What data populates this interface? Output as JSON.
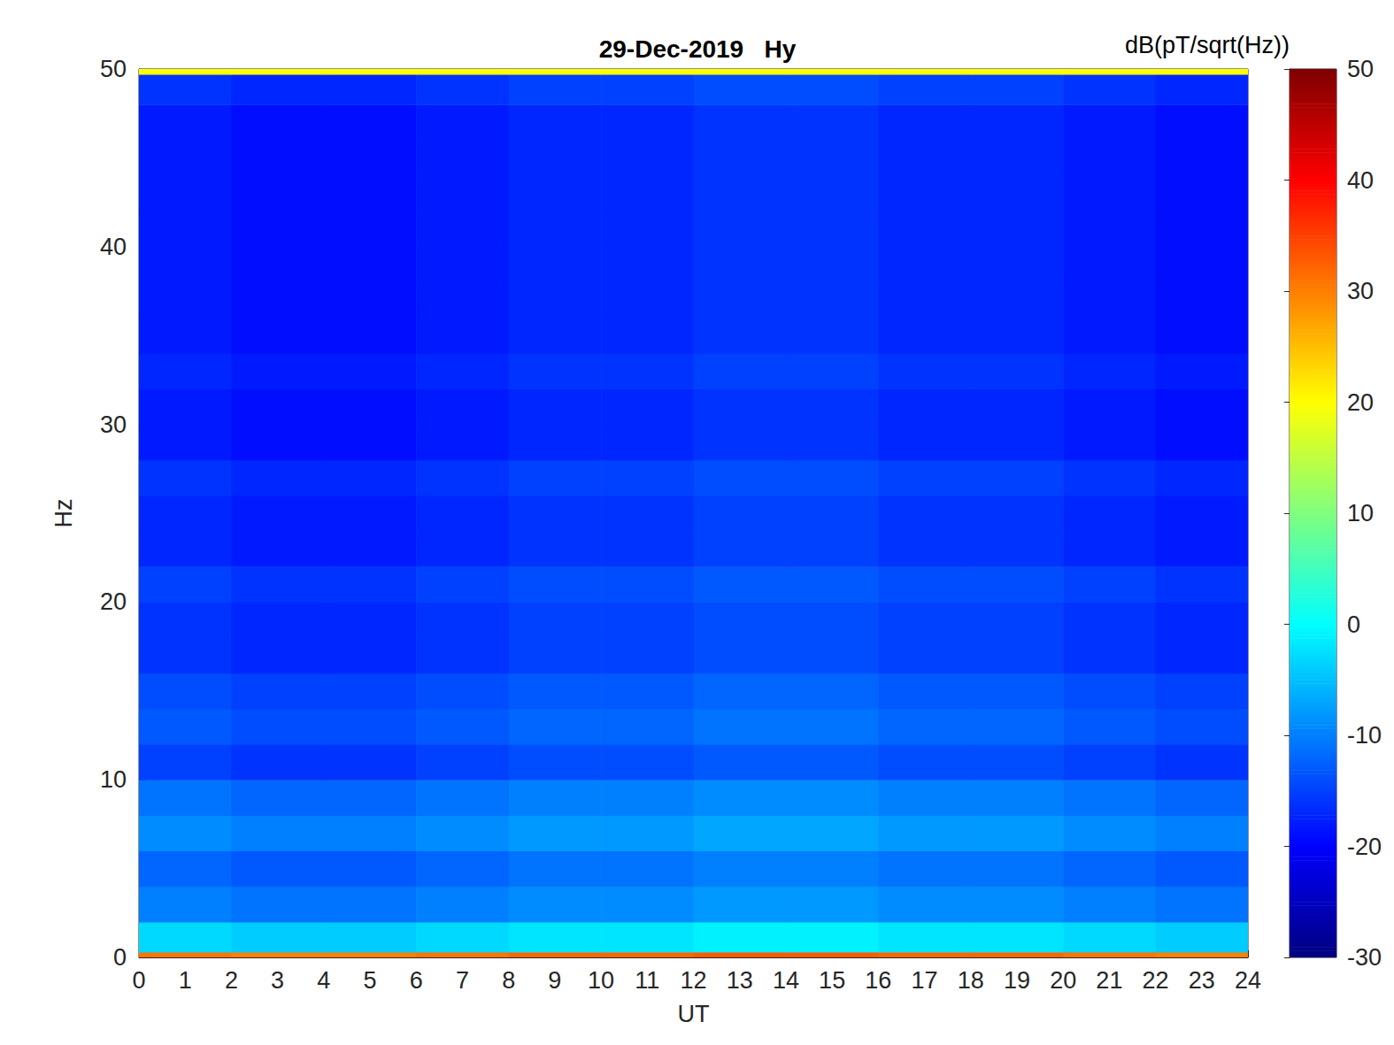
{
  "chart_data": {
    "type": "heatmap",
    "title": "29-Dec-2019   Hy",
    "x_label": "UT",
    "y_label": "Hz",
    "xlim": [
      0,
      24
    ],
    "xticks": [
      0,
      1,
      2,
      3,
      4,
      5,
      6,
      7,
      8,
      9,
      10,
      11,
      12,
      13,
      14,
      15,
      16,
      17,
      18,
      19,
      20,
      21,
      22,
      23,
      24
    ],
    "ylim": [
      0,
      50
    ],
    "yticks": [
      0,
      10,
      20,
      30,
      40,
      50
    ],
    "x_edges": [
      0,
      2,
      4,
      6,
      8,
      10,
      12,
      14,
      16,
      18,
      20,
      22,
      24
    ],
    "y_edges": [
      0,
      0.3,
      2,
      4,
      6,
      8,
      10,
      12,
      14,
      16,
      18,
      20,
      22,
      24,
      26,
      28,
      30,
      32,
      34,
      36,
      38,
      40,
      42,
      44,
      46,
      48,
      49.7,
      50
    ],
    "values": [
      [
        31,
        30,
        30,
        31,
        32,
        32,
        33,
        33,
        32,
        32,
        31,
        30
      ],
      [
        -3,
        -4,
        -4,
        -3,
        -2,
        -2,
        -1,
        -1,
        -2,
        -2,
        -3,
        -4
      ],
      [
        -10,
        -11,
        -11,
        -10,
        -9,
        -9,
        -8,
        -8,
        -9,
        -9,
        -10,
        -11
      ],
      [
        -12,
        -13,
        -13,
        -12,
        -11,
        -11,
        -10,
        -10,
        -11,
        -11,
        -12,
        -13
      ],
      [
        -9,
        -10,
        -10,
        -9,
        -8,
        -8,
        -7,
        -7,
        -8,
        -8,
        -9,
        -10
      ],
      [
        -11,
        -12,
        -12,
        -11,
        -10,
        -10,
        -9,
        -9,
        -10,
        -10,
        -11,
        -12
      ],
      [
        -15,
        -16,
        -16,
        -15,
        -14,
        -14,
        -13,
        -13,
        -14,
        -14,
        -15,
        -16
      ],
      [
        -13,
        -14,
        -14,
        -13,
        -12,
        -12,
        -11,
        -11,
        -12,
        -12,
        -13,
        -14
      ],
      [
        -14,
        -15,
        -15,
        -14,
        -13,
        -13,
        -12,
        -12,
        -13,
        -13,
        -14,
        -15
      ],
      [
        -16,
        -17,
        -17,
        -16,
        -15,
        -15,
        -14,
        -14,
        -15,
        -15,
        -16,
        -17
      ],
      [
        -16,
        -17,
        -17,
        -16,
        -15,
        -15,
        -14,
        -14,
        -15,
        -15,
        -16,
        -17
      ],
      [
        -15,
        -16,
        -16,
        -15,
        -14,
        -14,
        -13,
        -13,
        -14,
        -14,
        -15,
        -16
      ],
      [
        -17,
        -18,
        -18,
        -17,
        -16,
        -16,
        -15,
        -15,
        -16,
        -16,
        -17,
        -18
      ],
      [
        -17,
        -18,
        -18,
        -17,
        -16,
        -16,
        -15,
        -15,
        -16,
        -16,
        -17,
        -18
      ],
      [
        -16,
        -17,
        -17,
        -16,
        -15,
        -15,
        -14,
        -14,
        -15,
        -15,
        -16,
        -17
      ],
      [
        -18,
        -19,
        -19,
        -18,
        -17,
        -17,
        -16,
        -16,
        -17,
        -17,
        -18,
        -19
      ],
      [
        -18,
        -19,
        -19,
        -18,
        -17,
        -17,
        -16,
        -16,
        -17,
        -17,
        -18,
        -19
      ],
      [
        -17,
        -18,
        -18,
        -17,
        -16,
        -16,
        -15,
        -15,
        -16,
        -16,
        -17,
        -18
      ],
      [
        -18,
        -19,
        -19,
        -18,
        -17,
        -17,
        -16,
        -16,
        -17,
        -17,
        -18,
        -19
      ],
      [
        -18,
        -19,
        -19,
        -18,
        -17,
        -17,
        -16,
        -16,
        -17,
        -17,
        -18,
        -19
      ],
      [
        -18,
        -19,
        -19,
        -18,
        -17,
        -17,
        -16,
        -16,
        -17,
        -17,
        -18,
        -19
      ],
      [
        -18,
        -19,
        -19,
        -18,
        -17,
        -17,
        -16,
        -16,
        -17,
        -17,
        -18,
        -19
      ],
      [
        -18,
        -19,
        -19,
        -18,
        -17,
        -17,
        -16,
        -16,
        -17,
        -17,
        -18,
        -19
      ],
      [
        -18,
        -19,
        -19,
        -18,
        -17,
        -17,
        -16,
        -16,
        -17,
        -17,
        -18,
        -19
      ],
      [
        -18,
        -19,
        -19,
        -18,
        -17,
        -17,
        -16,
        -16,
        -17,
        -17,
        -18,
        -19
      ],
      [
        -16,
        -17,
        -17,
        -16,
        -15,
        -15,
        -14,
        -14,
        -15,
        -15,
        -16,
        -17
      ],
      [
        20,
        20,
        20,
        20,
        20,
        20,
        20,
        20,
        20,
        20,
        20,
        20
      ]
    ],
    "colorbar": {
      "label": "dB(pT/sqrt(Hz))",
      "clim": [
        -30,
        50
      ],
      "cticks": [
        -30,
        -20,
        -10,
        0,
        10,
        20,
        30,
        40,
        50
      ]
    }
  }
}
